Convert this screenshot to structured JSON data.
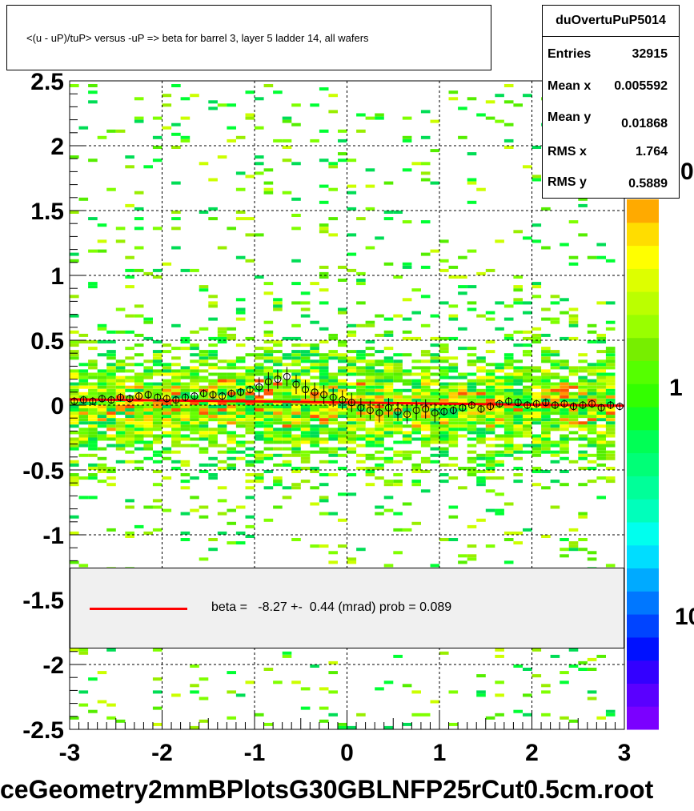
{
  "chart_data": {
    "type": "heatmap",
    "title": "<(u - uP)/tuP> versus  -uP => beta for barrel 3, layer 5 ladder 14, all wafers",
    "xlim": [
      -3,
      3
    ],
    "ylim": [
      -2.5,
      2.5
    ],
    "x_ticks": [
      "-3",
      "-2",
      "-1",
      "0",
      "1",
      "2",
      "3"
    ],
    "y_ticks": [
      "2.5",
      "2",
      "1.5",
      "1",
      "0.5",
      "0",
      "-0.5",
      "-1",
      "-1.5",
      "-2",
      "-2.5"
    ],
    "z_scale": "log",
    "z_tick_labels": [
      "10",
      "1",
      "0"
    ],
    "colors": {
      "low": "#7b00ff",
      "mid": "#00ff66",
      "high": "#ff3300",
      "fit_line": "#ff0000"
    },
    "grid": true,
    "profile_points": {
      "x": [
        -2.95,
        -2.85,
        -2.75,
        -2.65,
        -2.55,
        -2.45,
        -2.35,
        -2.25,
        -2.15,
        -2.05,
        -1.95,
        -1.85,
        -1.75,
        -1.65,
        -1.55,
        -1.45,
        -1.35,
        -1.25,
        -1.15,
        -1.05,
        -0.95,
        -0.85,
        -0.75,
        -0.65,
        -0.55,
        -0.45,
        -0.35,
        -0.25,
        -0.15,
        -0.05,
        0.05,
        0.15,
        0.25,
        0.35,
        0.45,
        0.55,
        0.65,
        0.75,
        0.85,
        0.95,
        1.05,
        1.15,
        1.25,
        1.35,
        1.45,
        1.55,
        1.65,
        1.75,
        1.85,
        1.95,
        2.05,
        2.15,
        2.25,
        2.35,
        2.45,
        2.55,
        2.65,
        2.75,
        2.85,
        2.95
      ],
      "y": [
        0.03,
        0.04,
        0.03,
        0.05,
        0.04,
        0.06,
        0.05,
        0.07,
        0.08,
        0.06,
        0.05,
        0.04,
        0.06,
        0.07,
        0.09,
        0.08,
        0.07,
        0.09,
        0.1,
        0.12,
        0.14,
        0.18,
        0.2,
        0.22,
        0.16,
        0.12,
        0.1,
        0.08,
        0.06,
        0.04,
        0.02,
        -0.02,
        -0.04,
        -0.06,
        -0.02,
        -0.05,
        -0.07,
        -0.04,
        -0.03,
        -0.06,
        -0.05,
        -0.04,
        -0.02,
        0.0,
        -0.03,
        -0.01,
        0.01,
        0.03,
        0.02,
        0.0,
        0.01,
        0.02,
        0.0,
        0.01,
        -0.01,
        0.0,
        0.01,
        -0.02,
        0.0,
        -0.01
      ]
    },
    "fit": {
      "intercept": 0.02,
      "slope": -0.00827
    }
  },
  "title_box": {
    "text": "<(u - uP)/tuP> versus  -uP => beta for barrel 3, layer 5 ladder 14, all wafers"
  },
  "stats": {
    "name": "duOvertuPuP5014",
    "rows": [
      {
        "label": "Entries",
        "value": "32915"
      },
      {
        "label": "Mean x",
        "value": "0.005592"
      },
      {
        "label": "Mean y",
        "value": "0.01868"
      },
      {
        "label": "RMS x",
        "value": "1.764"
      },
      {
        "label": "RMS y",
        "value": "0.5889"
      }
    ]
  },
  "legend": {
    "text": "beta =   -8.27 +-  0.44 (mrad) prob = 0.089"
  },
  "footer": {
    "text": "ceGeometry2mmBPlotsG30GBLNFP25rCut0.5cm.root"
  }
}
